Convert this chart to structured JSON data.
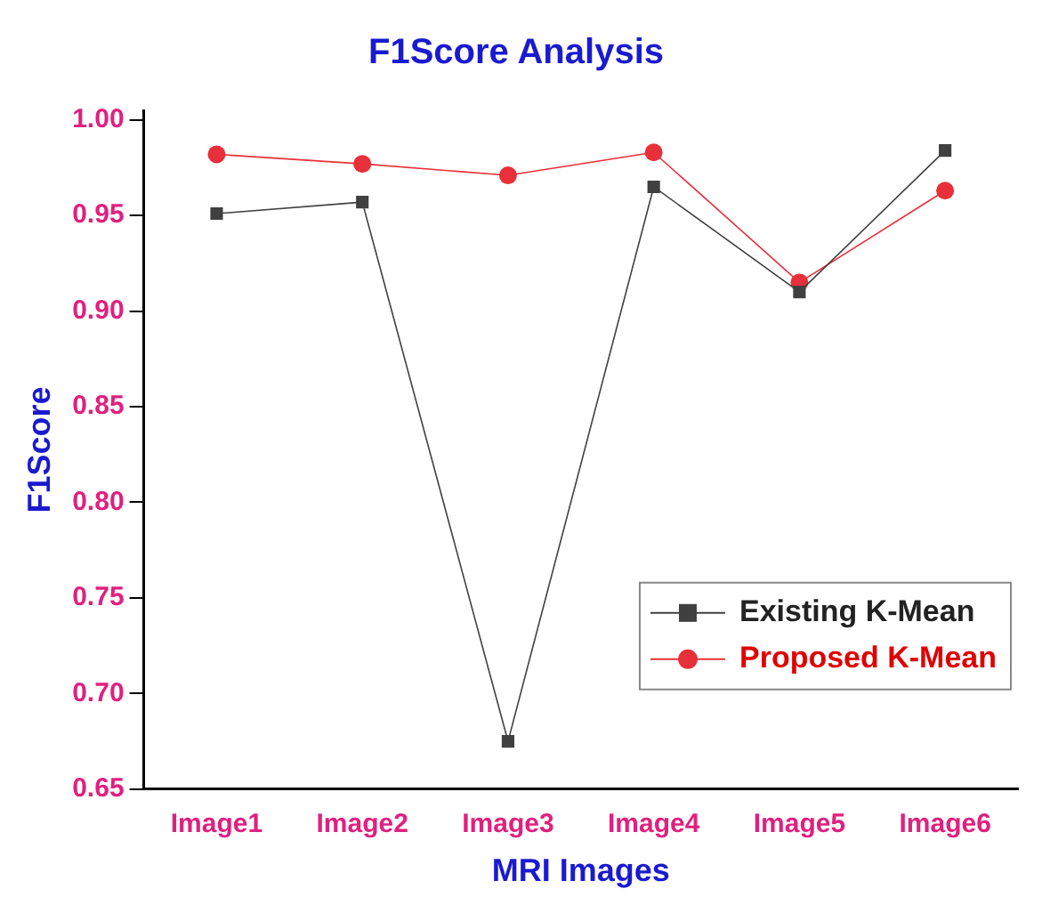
{
  "chart_data": {
    "type": "line",
    "title": "F1Score Analysis",
    "xlabel": "MRI Images",
    "ylabel": "F1Score",
    "categories": [
      "Image1",
      "Image2",
      "Image3",
      "Image4",
      "Image5",
      "Image6"
    ],
    "series": [
      {
        "name": "Existing K-Mean",
        "color": "#404040",
        "marker": "square",
        "values": [
          0.951,
          0.957,
          0.675,
          0.965,
          0.91,
          0.984
        ]
      },
      {
        "name": "Proposed K-Mean",
        "color": "#e8303a",
        "marker": "circle",
        "values": [
          0.982,
          0.977,
          0.971,
          0.983,
          0.915,
          0.963
        ]
      }
    ],
    "ylim": [
      0.65,
      1.005
    ],
    "yticks": [
      0.65,
      {
        "value": 0.7,
        "label": "0.70"
      },
      0.75,
      {
        "value": 0.8,
        "label": "0.80"
      },
      0.85,
      {
        "value": 0.9,
        "label": "0.90"
      },
      0.95,
      {
        "value": 1.0,
        "label": "1.00"
      }
    ],
    "grid": false,
    "legend": "bottom right",
    "line_style": "solid"
  }
}
